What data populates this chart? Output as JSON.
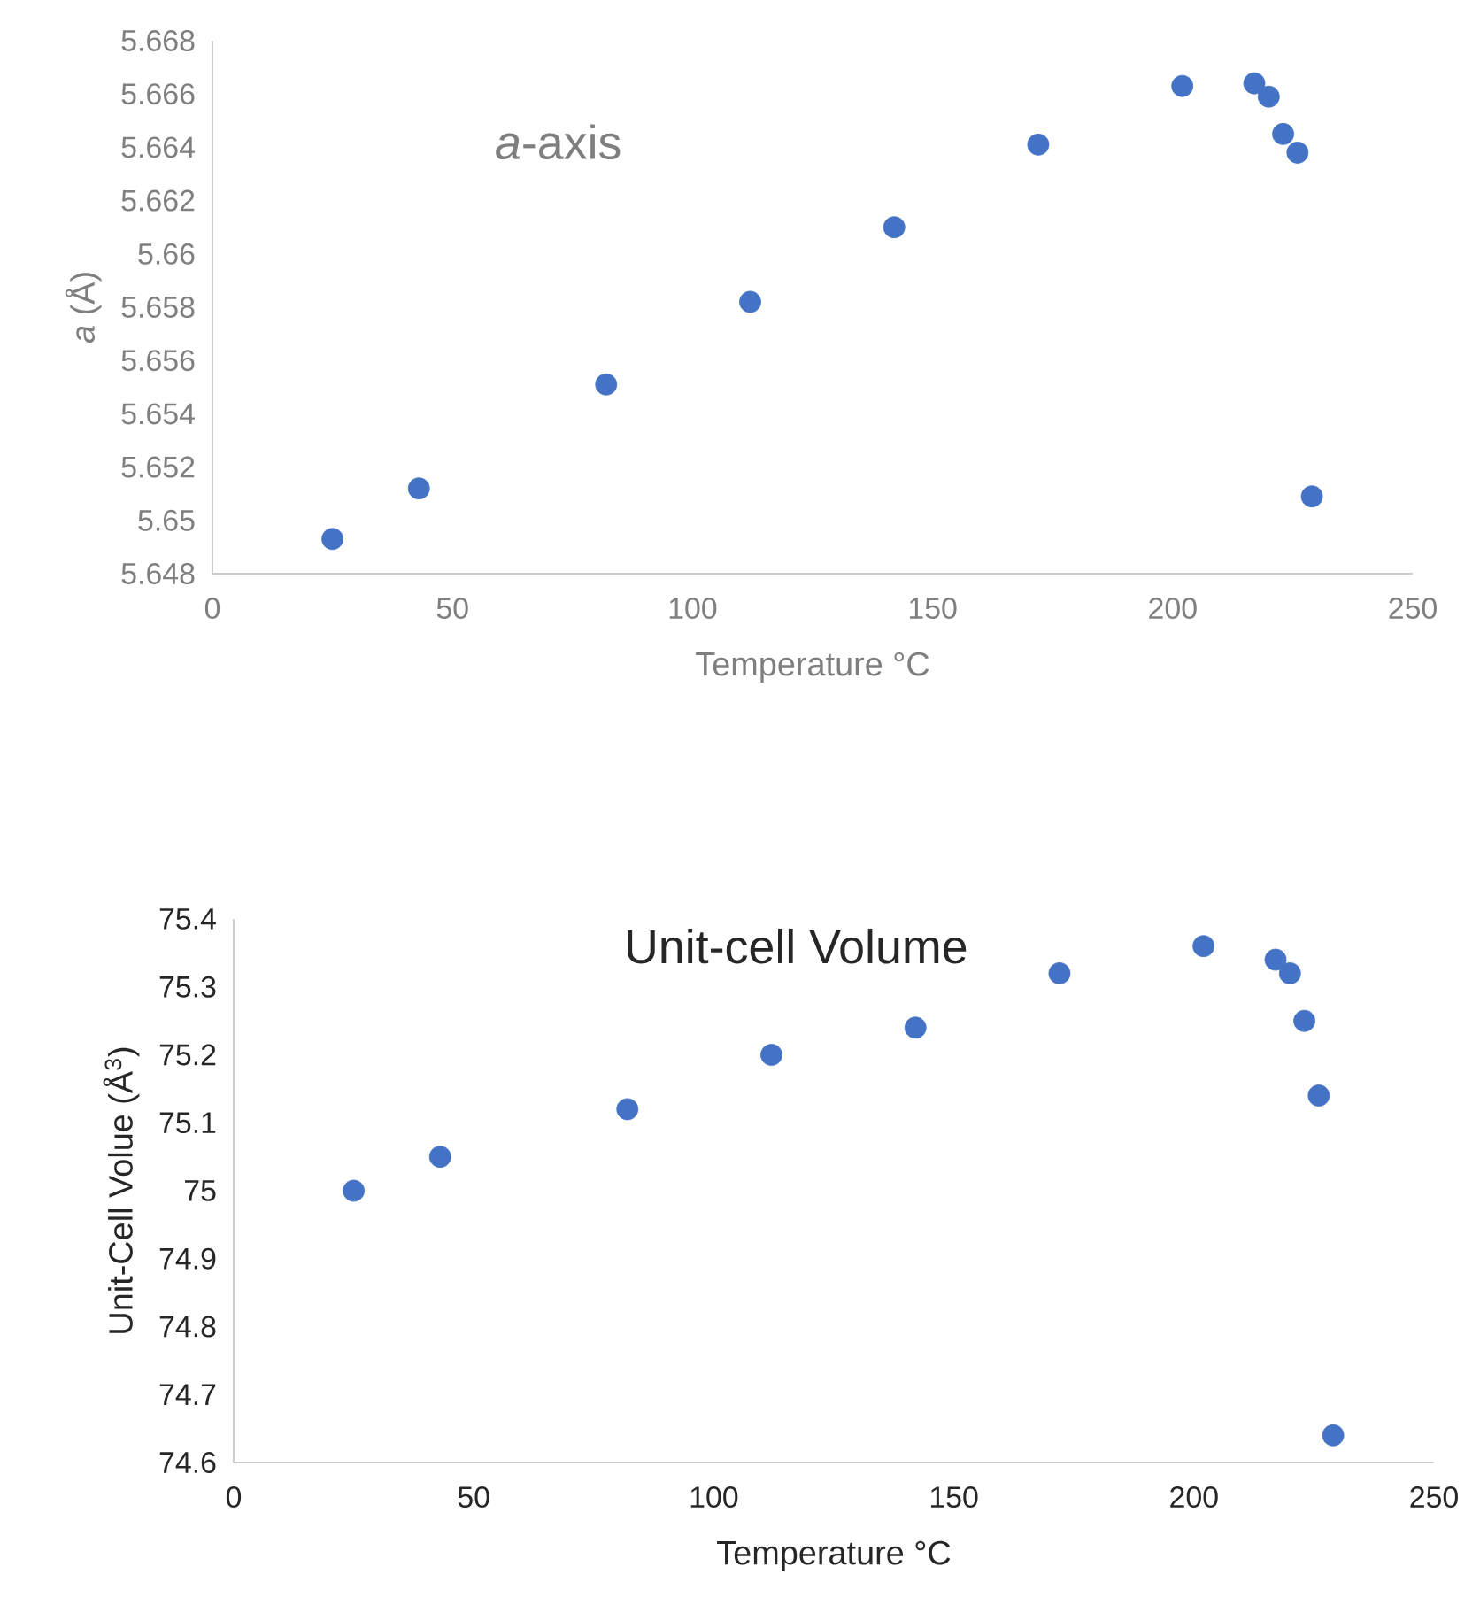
{
  "chart_data": [
    {
      "type": "scatter",
      "title": "*a*-axis",
      "xlabel": "Temperature °C",
      "ylabel": "*a* (Å)",
      "marker": "circle",
      "grid": false,
      "xlim": [
        0,
        250
      ],
      "xticks": [
        0,
        50,
        100,
        150,
        200,
        250
      ],
      "ylim": [
        5.648,
        5.668
      ],
      "yticks": [
        5.648,
        5.65,
        5.652,
        5.654,
        5.656,
        5.658,
        5.66,
        5.662,
        5.664,
        5.666,
        5.668
      ],
      "x": [
        25,
        43,
        82,
        112,
        142,
        172,
        202,
        217,
        220,
        223,
        226,
        229
      ],
      "series": [
        {
          "color": "#4472c4",
          "values": [
            5.6493,
            5.6512,
            5.6551,
            5.6582,
            5.661,
            5.6641,
            5.6663,
            5.6664,
            5.6659,
            5.6645,
            5.6638,
            5.6509
          ]
        }
      ]
    },
    {
      "type": "scatter",
      "title": "Unit-cell Volume",
      "xlabel": "Temperature °C",
      "ylabel": "Unit-Cell Volue (Å$^{3}$)",
      "marker": "circle",
      "grid": false,
      "xlim": [
        0,
        250
      ],
      "xticks": [
        0,
        50,
        100,
        150,
        200,
        250
      ],
      "ylim": [
        74.6,
        75.4
      ],
      "yticks": [
        74.6,
        74.7,
        74.8,
        74.9,
        75,
        75.1,
        75.2,
        75.3,
        75.4
      ],
      "x": [
        25,
        43,
        82,
        112,
        142,
        172,
        202,
        217,
        220,
        223,
        226,
        229
      ],
      "series": [
        {
          "color": "#4472c4",
          "values": [
            75.0,
            75.05,
            75.12,
            75.2,
            75.24,
            75.32,
            75.36,
            75.34,
            75.32,
            75.25,
            75.14,
            74.64
          ]
        }
      ]
    }
  ]
}
